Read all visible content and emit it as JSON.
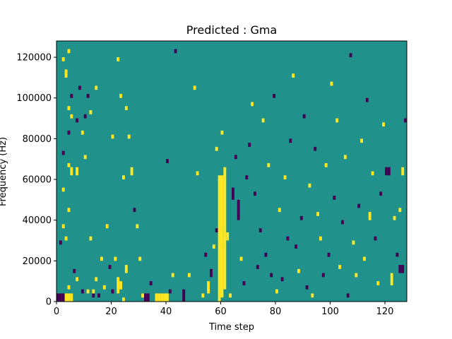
{
  "chart_data": {
    "type": "heatmap",
    "title": "Predicted : Gma",
    "xlabel": "Time step",
    "ylabel": "Frequency (Hz)",
    "xlim": [
      0,
      128
    ],
    "ylim": [
      0,
      128000
    ],
    "x_ticks": [
      0,
      20,
      40,
      60,
      80,
      100,
      120
    ],
    "y_ticks": [
      0,
      20000,
      40000,
      60000,
      80000,
      100000,
      120000
    ],
    "y_tick_labels": [
      "0",
      "20000",
      "40000",
      "60000",
      "80000",
      "100000",
      "120000"
    ],
    "grid": false,
    "colormap": "viridis",
    "colors": {
      "background": "#21918c",
      "high": "#fde725",
      "low": "#440154"
    },
    "background_value": 0,
    "notes": "binary-like piano-roll: background value 0, yellow cells = positive, purple cells = negative",
    "cells": [
      {
        "t": 0,
        "f0": 0,
        "f1": 4000,
        "value": -1
      },
      {
        "t": 1,
        "f0": 0,
        "f1": 4000,
        "value": -1
      },
      {
        "t": 2,
        "f0": 0,
        "f1": 4000,
        "value": -1
      },
      {
        "t": 3,
        "f0": 0,
        "f1": 4000,
        "value": 1
      },
      {
        "t": 4,
        "f0": 0,
        "f1": 4000,
        "value": 1
      },
      {
        "t": 5,
        "f0": 0,
        "f1": 4000,
        "value": 1
      },
      {
        "t": 4,
        "f0": 6000,
        "f1": 8000,
        "value": 1
      },
      {
        "t": 1,
        "f0": 28000,
        "f1": 30000,
        "value": -1
      },
      {
        "t": 2,
        "f0": 36000,
        "f1": 38000,
        "value": 1
      },
      {
        "t": 3,
        "f0": 30000,
        "f1": 32000,
        "value": 1
      },
      {
        "t": 4,
        "f0": 44000,
        "f1": 46000,
        "value": 1
      },
      {
        "t": 2,
        "f0": 54000,
        "f1": 56000,
        "value": 1
      },
      {
        "t": 4,
        "f0": 66000,
        "f1": 68000,
        "value": 1
      },
      {
        "t": 5,
        "f0": 62000,
        "f1": 66000,
        "value": 1
      },
      {
        "t": 7,
        "f0": 62000,
        "f1": 66000,
        "value": 1
      },
      {
        "t": 2,
        "f0": 72000,
        "f1": 74000,
        "value": -1
      },
      {
        "t": 4,
        "f0": 82000,
        "f1": 84000,
        "value": -1
      },
      {
        "t": 5,
        "f0": 90000,
        "f1": 92000,
        "value": 1
      },
      {
        "t": 4,
        "f0": 94000,
        "f1": 96000,
        "value": 1
      },
      {
        "t": 5,
        "f0": 100000,
        "f1": 102000,
        "value": -1
      },
      {
        "t": 3,
        "f0": 110000,
        "f1": 114000,
        "value": 1
      },
      {
        "t": 2,
        "f0": 118000,
        "f1": 120000,
        "value": 1
      },
      {
        "t": 4,
        "f0": 122000,
        "f1": 124000,
        "value": 1
      },
      {
        "t": 7,
        "f0": 88000,
        "f1": 90000,
        "value": -1
      },
      {
        "t": 8,
        "f0": 104000,
        "f1": 106000,
        "value": -1
      },
      {
        "t": 6,
        "f0": 14000,
        "f1": 16000,
        "value": -1
      },
      {
        "t": 7,
        "f0": 10000,
        "f1": 12000,
        "value": 1
      },
      {
        "t": 9,
        "f0": 4000,
        "f1": 6000,
        "value": -1
      },
      {
        "t": 10,
        "f0": 70000,
        "f1": 72000,
        "value": 1
      },
      {
        "t": 9,
        "f0": 82000,
        "f1": 84000,
        "value": 1
      },
      {
        "t": 10,
        "f0": 90000,
        "f1": 92000,
        "value": -1
      },
      {
        "t": 11,
        "f0": 100000,
        "f1": 102000,
        "value": -1
      },
      {
        "t": 11,
        "f0": 4000,
        "f1": 6000,
        "value": 1
      },
      {
        "t": 12,
        "f0": 30000,
        "f1": 32000,
        "value": 1
      },
      {
        "t": 12,
        "f0": 92000,
        "f1": 94000,
        "value": 1
      },
      {
        "t": 13,
        "f0": 2000,
        "f1": 4000,
        "value": -1
      },
      {
        "t": 13,
        "f0": 4000,
        "f1": 6000,
        "value": 1
      },
      {
        "t": 14,
        "f0": 10000,
        "f1": 12000,
        "value": 1
      },
      {
        "t": 15,
        "f0": 2000,
        "f1": 4000,
        "value": -1
      },
      {
        "t": 14,
        "f0": 104000,
        "f1": 106000,
        "value": 1
      },
      {
        "t": 16,
        "f0": 20000,
        "f1": 22000,
        "value": 1
      },
      {
        "t": 17,
        "f0": 6000,
        "f1": 8000,
        "value": 1
      },
      {
        "t": 18,
        "f0": 36000,
        "f1": 38000,
        "value": 1
      },
      {
        "t": 19,
        "f0": 16000,
        "f1": 18000,
        "value": -1
      },
      {
        "t": 20,
        "f0": 4000,
        "f1": 6000,
        "value": -1
      },
      {
        "t": 20,
        "f0": 80000,
        "f1": 82000,
        "value": 1
      },
      {
        "t": 21,
        "f0": 20000,
        "f1": 22000,
        "value": 1
      },
      {
        "t": 22,
        "f0": 4000,
        "f1": 12000,
        "value": 1
      },
      {
        "t": 23,
        "f0": 6000,
        "f1": 10000,
        "value": 1
      },
      {
        "t": 24,
        "f0": 0,
        "f1": 2000,
        "value": 1
      },
      {
        "t": 25,
        "f0": 14000,
        "f1": 18000,
        "value": 1
      },
      {
        "t": 24,
        "f0": 60000,
        "f1": 62000,
        "value": 1
      },
      {
        "t": 23,
        "f0": 100000,
        "f1": 102000,
        "value": 1
      },
      {
        "t": 22,
        "f0": 118000,
        "f1": 120000,
        "value": 1
      },
      {
        "t": 25,
        "f0": 94000,
        "f1": 96000,
        "value": 1
      },
      {
        "t": 26,
        "f0": 80000,
        "f1": 82000,
        "value": 1
      },
      {
        "t": 27,
        "f0": 62000,
        "f1": 66000,
        "value": 1
      },
      {
        "t": 28,
        "f0": 44000,
        "f1": 46000,
        "value": -1
      },
      {
        "t": 29,
        "f0": 36000,
        "f1": 38000,
        "value": 1
      },
      {
        "t": 30,
        "f0": 20000,
        "f1": 22000,
        "value": 1
      },
      {
        "t": 31,
        "f0": 2000,
        "f1": 4000,
        "value": 1
      },
      {
        "t": 32,
        "f0": 0,
        "f1": 4000,
        "value": -1
      },
      {
        "t": 33,
        "f0": 0,
        "f1": 4000,
        "value": -1
      },
      {
        "t": 34,
        "f0": 8000,
        "f1": 10000,
        "value": -1
      },
      {
        "t": 36,
        "f0": 0,
        "f1": 4000,
        "value": 1
      },
      {
        "t": 37,
        "f0": 0,
        "f1": 4000,
        "value": 1
      },
      {
        "t": 38,
        "f0": 0,
        "f1": 4000,
        "value": 1
      },
      {
        "t": 39,
        "f0": 0,
        "f1": 4000,
        "value": 1
      },
      {
        "t": 40,
        "f0": 0,
        "f1": 4000,
        "value": 1
      },
      {
        "t": 41,
        "f0": 4000,
        "f1": 6000,
        "value": -1
      },
      {
        "t": 42,
        "f0": 12000,
        "f1": 14000,
        "value": 1
      },
      {
        "t": 40,
        "f0": 68000,
        "f1": 70000,
        "value": -1
      },
      {
        "t": 43,
        "f0": 122000,
        "f1": 124000,
        "value": -1
      },
      {
        "t": 46,
        "f0": 0,
        "f1": 6000,
        "value": -1
      },
      {
        "t": 48,
        "f0": 12000,
        "f1": 14000,
        "value": 1
      },
      {
        "t": 50,
        "f0": 104000,
        "f1": 106000,
        "value": 1
      },
      {
        "t": 51,
        "f0": 62000,
        "f1": 64000,
        "value": 1
      },
      {
        "t": 53,
        "f0": 2000,
        "f1": 4000,
        "value": 1
      },
      {
        "t": 54,
        "f0": 22000,
        "f1": 24000,
        "value": -1
      },
      {
        "t": 55,
        "f0": 4000,
        "f1": 10000,
        "value": 1
      },
      {
        "t": 56,
        "f0": 12000,
        "f1": 16000,
        "value": -1
      },
      {
        "t": 57,
        "f0": 26000,
        "f1": 28000,
        "value": 1
      },
      {
        "t": 58,
        "f0": 34000,
        "f1": 36000,
        "value": -1
      },
      {
        "t": 59,
        "f0": 0,
        "f1": 62000,
        "value": 1
      },
      {
        "t": 60,
        "f0": 2000,
        "f1": 62000,
        "value": 1
      },
      {
        "t": 61,
        "f0": 6000,
        "f1": 66000,
        "value": 1
      },
      {
        "t": 62,
        "f0": 30000,
        "f1": 34000,
        "value": 1
      },
      {
        "t": 58,
        "f0": 74000,
        "f1": 76000,
        "value": 1
      },
      {
        "t": 60,
        "f0": 82000,
        "f1": 84000,
        "value": 1
      },
      {
        "t": 63,
        "f0": 2000,
        "f1": 4000,
        "value": 1
      },
      {
        "t": 64,
        "f0": 50000,
        "f1": 56000,
        "value": -1
      },
      {
        "t": 65,
        "f0": 70000,
        "f1": 72000,
        "value": -1
      },
      {
        "t": 66,
        "f0": 40000,
        "f1": 50000,
        "value": -1
      },
      {
        "t": 67,
        "f0": 20000,
        "f1": 22000,
        "value": 1
      },
      {
        "t": 68,
        "f0": 8000,
        "f1": 10000,
        "value": -1
      },
      {
        "t": 69,
        "f0": 60000,
        "f1": 62000,
        "value": -1
      },
      {
        "t": 70,
        "f0": 76000,
        "f1": 78000,
        "value": -1
      },
      {
        "t": 71,
        "f0": 96000,
        "f1": 98000,
        "value": 1
      },
      {
        "t": 72,
        "f0": 52000,
        "f1": 54000,
        "value": -1
      },
      {
        "t": 73,
        "f0": 16000,
        "f1": 18000,
        "value": -1
      },
      {
        "t": 74,
        "f0": 34000,
        "f1": 36000,
        "value": -1
      },
      {
        "t": 75,
        "f0": 88000,
        "f1": 90000,
        "value": 1
      },
      {
        "t": 76,
        "f0": 22000,
        "f1": 24000,
        "value": -1
      },
      {
        "t": 77,
        "f0": 66000,
        "f1": 68000,
        "value": 1
      },
      {
        "t": 78,
        "f0": 12000,
        "f1": 14000,
        "value": -1
      },
      {
        "t": 79,
        "f0": 100000,
        "f1": 102000,
        "value": -1
      },
      {
        "t": 80,
        "f0": 4000,
        "f1": 6000,
        "value": 1
      },
      {
        "t": 81,
        "f0": 44000,
        "f1": 46000,
        "value": 1
      },
      {
        "t": 82,
        "f0": 10000,
        "f1": 12000,
        "value": -1
      },
      {
        "t": 83,
        "f0": 60000,
        "f1": 62000,
        "value": 1
      },
      {
        "t": 84,
        "f0": 30000,
        "f1": 32000,
        "value": -1
      },
      {
        "t": 85,
        "f0": 78000,
        "f1": 80000,
        "value": -1
      },
      {
        "t": 86,
        "f0": 110000,
        "f1": 112000,
        "value": 1
      },
      {
        "t": 87,
        "f0": 26000,
        "f1": 28000,
        "value": -1
      },
      {
        "t": 88,
        "f0": 14000,
        "f1": 16000,
        "value": 1
      },
      {
        "t": 89,
        "f0": 40000,
        "f1": 42000,
        "value": -1
      },
      {
        "t": 90,
        "f0": 90000,
        "f1": 92000,
        "value": -1
      },
      {
        "t": 91,
        "f0": 6000,
        "f1": 8000,
        "value": -1
      },
      {
        "t": 92,
        "f0": 56000,
        "f1": 58000,
        "value": 1
      },
      {
        "t": 93,
        "f0": 2000,
        "f1": 4000,
        "value": 1
      },
      {
        "t": 94,
        "f0": 74000,
        "f1": 76000,
        "value": -1
      },
      {
        "t": 95,
        "f0": 42000,
        "f1": 44000,
        "value": 1
      },
      {
        "t": 96,
        "f0": 30000,
        "f1": 32000,
        "value": 1
      },
      {
        "t": 97,
        "f0": 12000,
        "f1": 14000,
        "value": -1
      },
      {
        "t": 98,
        "f0": 66000,
        "f1": 68000,
        "value": 1
      },
      {
        "t": 99,
        "f0": 22000,
        "f1": 24000,
        "value": -1
      },
      {
        "t": 100,
        "f0": 106000,
        "f1": 108000,
        "value": 1
      },
      {
        "t": 101,
        "f0": 50000,
        "f1": 52000,
        "value": -1
      },
      {
        "t": 102,
        "f0": 88000,
        "f1": 90000,
        "value": 1
      },
      {
        "t": 103,
        "f0": 16000,
        "f1": 18000,
        "value": 1
      },
      {
        "t": 104,
        "f0": 38000,
        "f1": 40000,
        "value": -1
      },
      {
        "t": 105,
        "f0": 70000,
        "f1": 72000,
        "value": 1
      },
      {
        "t": 106,
        "f0": 2000,
        "f1": 4000,
        "value": -1
      },
      {
        "t": 107,
        "f0": 120000,
        "f1": 122000,
        "value": -1
      },
      {
        "t": 108,
        "f0": 28000,
        "f1": 30000,
        "value": 1
      },
      {
        "t": 109,
        "f0": 12000,
        "f1": 14000,
        "value": 1
      },
      {
        "t": 110,
        "f0": 46000,
        "f1": 48000,
        "value": -1
      },
      {
        "t": 111,
        "f0": 78000,
        "f1": 80000,
        "value": 1
      },
      {
        "t": 112,
        "f0": 20000,
        "f1": 22000,
        "value": 1
      },
      {
        "t": 113,
        "f0": 98000,
        "f1": 100000,
        "value": -1
      },
      {
        "t": 114,
        "f0": 40000,
        "f1": 44000,
        "value": 1
      },
      {
        "t": 115,
        "f0": 62000,
        "f1": 64000,
        "value": 1
      },
      {
        "t": 116,
        "f0": 30000,
        "f1": 32000,
        "value": -1
      },
      {
        "t": 117,
        "f0": 8000,
        "f1": 10000,
        "value": 1
      },
      {
        "t": 118,
        "f0": 52000,
        "f1": 54000,
        "value": -1
      },
      {
        "t": 119,
        "f0": 86000,
        "f1": 88000,
        "value": 1
      },
      {
        "t": 120,
        "f0": 62000,
        "f1": 66000,
        "value": -1
      },
      {
        "t": 121,
        "f0": 62000,
        "f1": 66000,
        "value": -1
      },
      {
        "t": 122,
        "f0": 8000,
        "f1": 14000,
        "value": 1
      },
      {
        "t": 123,
        "f0": 40000,
        "f1": 42000,
        "value": 1
      },
      {
        "t": 124,
        "f0": 22000,
        "f1": 24000,
        "value": -1
      },
      {
        "t": 125,
        "f0": 14000,
        "f1": 18000,
        "value": -1
      },
      {
        "t": 126,
        "f0": 14000,
        "f1": 18000,
        "value": -1
      },
      {
        "t": 127,
        "f0": 88000,
        "f1": 90000,
        "value": -1
      },
      {
        "t": 126,
        "f0": 62000,
        "f1": 66000,
        "value": 1
      },
      {
        "t": 125,
        "f0": 44000,
        "f1": 46000,
        "value": 1
      }
    ]
  }
}
